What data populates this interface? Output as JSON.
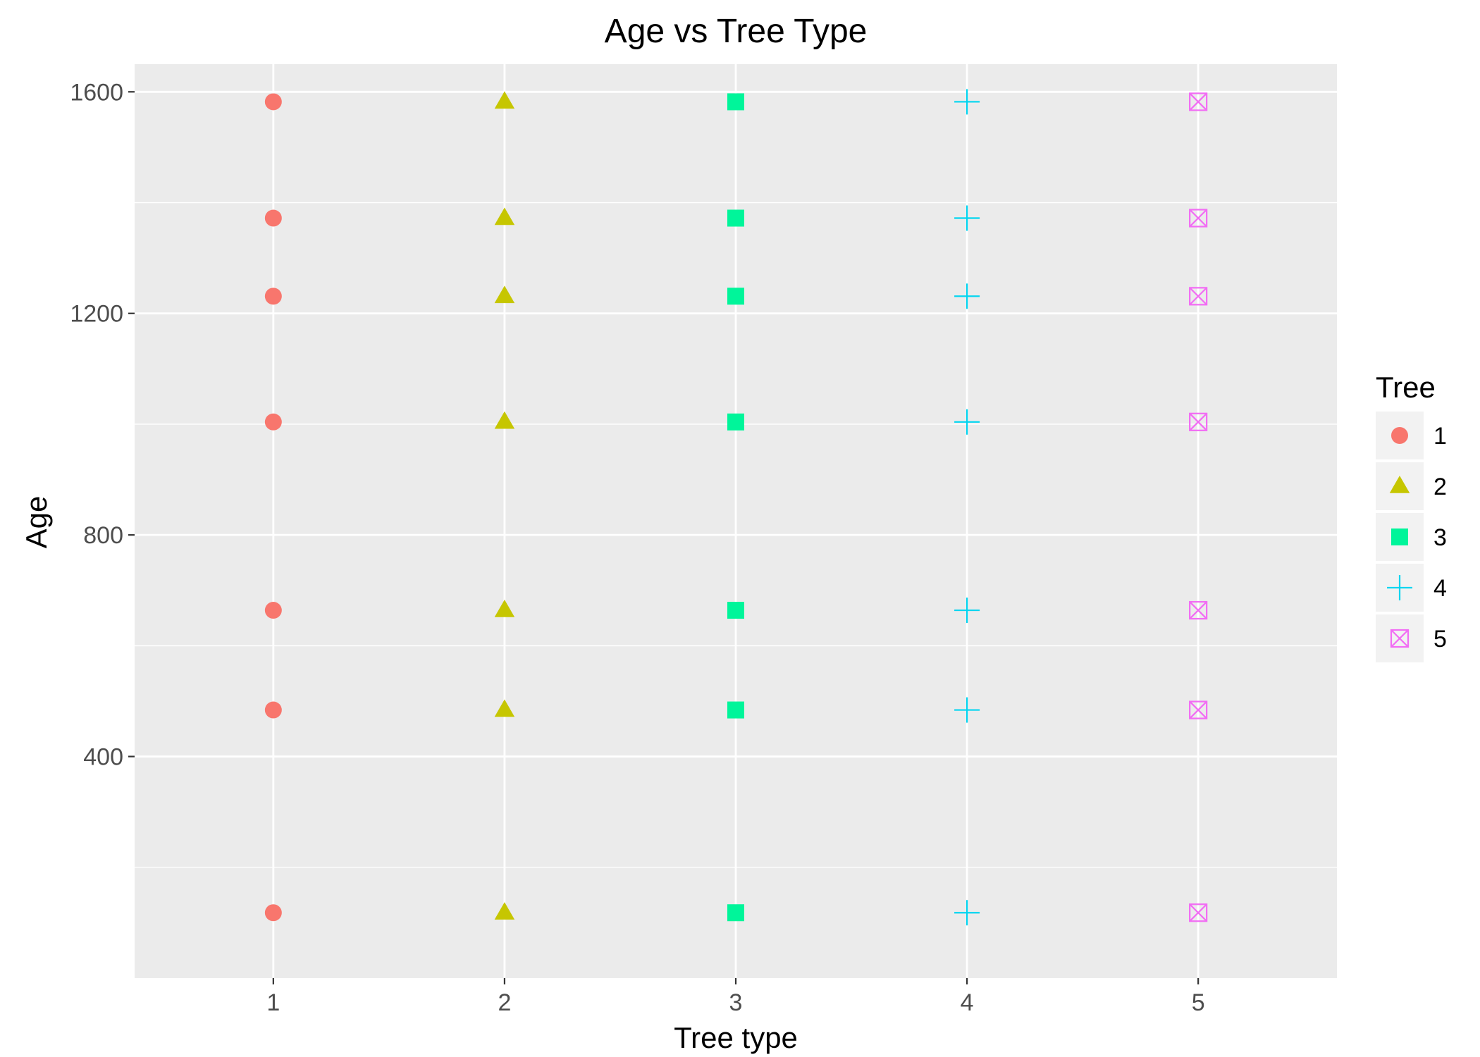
{
  "chart_data": {
    "type": "scatter",
    "title": "Age vs Tree Type",
    "xlabel": "Tree type",
    "ylabel": "Age",
    "x_ticks": [
      "1",
      "2",
      "3",
      "4",
      "5"
    ],
    "y_ticks": [
      "400",
      "800",
      "1200",
      "1600"
    ],
    "xlim": [
      0.4,
      5.6
    ],
    "ylim": [
      0,
      1650
    ],
    "grid": true,
    "legend_title": "Tree",
    "legend_position": "right",
    "series": [
      {
        "name": "1",
        "shape": "circle",
        "color": "#F8766D",
        "x": [
          1,
          1,
          1,
          1,
          1,
          1,
          1
        ],
        "y": [
          118,
          484,
          664,
          1004,
          1231,
          1372,
          1582
        ]
      },
      {
        "name": "2",
        "shape": "triangle",
        "color": "#C6C600",
        "x": [
          2,
          2,
          2,
          2,
          2,
          2,
          2
        ],
        "y": [
          118,
          484,
          664,
          1004,
          1231,
          1372,
          1582
        ]
      },
      {
        "name": "3",
        "shape": "square",
        "color": "#00F59A",
        "x": [
          3,
          3,
          3,
          3,
          3,
          3,
          3
        ],
        "y": [
          118,
          484,
          664,
          1004,
          1231,
          1372,
          1582
        ]
      },
      {
        "name": "4",
        "shape": "plus",
        "color": "#00D5F0",
        "x": [
          4,
          4,
          4,
          4,
          4,
          4,
          4
        ],
        "y": [
          118,
          484,
          664,
          1004,
          1231,
          1372,
          1582
        ]
      },
      {
        "name": "5",
        "shape": "boxed-x",
        "color": "#F26CF4",
        "x": [
          5,
          5,
          5,
          5,
          5,
          5,
          5
        ],
        "y": [
          118,
          484,
          664,
          1004,
          1231,
          1372,
          1582
        ]
      }
    ]
  }
}
